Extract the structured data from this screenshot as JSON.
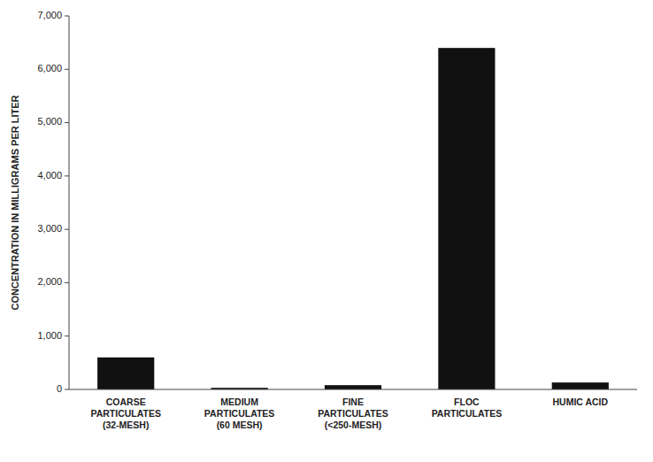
{
  "chart_data": {
    "type": "bar",
    "categories": [
      "COARSE\nPARTICULATES\n(32-MESH)",
      "MEDIUM\nPARTICULATES\n(60 MESH)",
      "FINE\nPARTICULATES\n(<250-MESH)",
      "FLOC\nPARTICULATES",
      "HUMIC ACID"
    ],
    "values": [
      600,
      30,
      80,
      6400,
      130
    ],
    "color": "#111111",
    "ylabel": "CONCENTRATION IN MILLIGRAMS PER LITER",
    "ylim": [
      0,
      7000
    ],
    "yticks": [
      0,
      {
        "value": 1000,
        "label": "1,000"
      },
      {
        "value": 2000,
        "label": "2,000"
      },
      {
        "value": 3000,
        "label": "3,000"
      },
      {
        "value": 4000,
        "label": "4,000"
      },
      {
        "value": 5000,
        "label": "5,000"
      },
      {
        "value": 6000,
        "label": "6,000"
      },
      {
        "value": 7000,
        "label": "7,000"
      }
    ],
    "grid": false
  }
}
